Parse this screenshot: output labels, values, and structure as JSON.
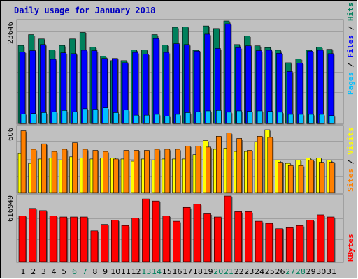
{
  "colors": {
    "background": "#c0c0c0",
    "title": "#0000c0",
    "hits": "#00805c",
    "files": "#0000ff",
    "pages": "#00c0ff",
    "visits": "#ffff00",
    "sites": "#ff8000",
    "kbytes": "#ff0000",
    "weekend": "#00805c",
    "weekday": "#000000"
  },
  "chart_data": [
    {
      "type": "bar",
      "title": "Daily usage for January 2018",
      "y_max_label": "23646",
      "ylim": [
        0,
        23646
      ],
      "categories": [
        "1",
        "2",
        "3",
        "4",
        "5",
        "6",
        "7",
        "8",
        "9",
        "10",
        "11",
        "12",
        "13",
        "14",
        "15",
        "16",
        "17",
        "18",
        "19",
        "20",
        "21",
        "22",
        "23",
        "24",
        "25",
        "26",
        "27",
        "28",
        "29",
        "30",
        "31"
      ],
      "weekend_days": [
        "6",
        "7",
        "13",
        "14",
        "20",
        "21",
        "27",
        "28"
      ],
      "legend": [
        {
          "label": "Pages",
          "color": "#00c0ff"
        },
        {
          "label": " / ",
          "color": "#000000"
        },
        {
          "label": "Files",
          "color": "#0000ff"
        },
        {
          "label": " / ",
          "color": "#000000"
        },
        {
          "label": "Hits",
          "color": "#00805c"
        }
      ],
      "series": [
        {
          "name": "Hits",
          "values": [
            18000,
            20500,
            19500,
            17000,
            18000,
            19500,
            21000,
            17600,
            15500,
            14500,
            14500,
            17000,
            17000,
            20500,
            18100,
            22200,
            22300,
            16900,
            22500,
            21900,
            23646,
            18200,
            20200,
            17900,
            17500,
            16900,
            14000,
            14900,
            16900,
            17600,
            17100
          ]
        },
        {
          "name": "Files",
          "values": [
            16500,
            16800,
            18200,
            14800,
            16300,
            16100,
            16900,
            16800,
            15000,
            15000,
            14000,
            16400,
            16000,
            19600,
            16400,
            18400,
            18200,
            16700,
            20600,
            17300,
            23000,
            17500,
            17900,
            16800,
            16900,
            16200,
            12000,
            13900,
            16700,
            16900,
            16100
          ]
        },
        {
          "name": "Pages",
          "values": [
            2200,
            2300,
            2500,
            2700,
            3000,
            2700,
            3400,
            3300,
            3600,
            2500,
            3100,
            1900,
            1900,
            2100,
            1700,
            2100,
            2500,
            2700,
            2900,
            3000,
            2600,
            2900,
            2800,
            2900,
            2800,
            2600,
            2100,
            2100,
            2100,
            2100,
            1800
          ]
        }
      ]
    },
    {
      "type": "bar",
      "y_max_label": "606",
      "ylim": [
        0,
        606
      ],
      "legend": [
        {
          "label": "Sites",
          "color": "#ff8000"
        },
        {
          "label": " / ",
          "color": "#000000"
        },
        {
          "label": "Visits",
          "color": "#ffff00"
        }
      ],
      "series": [
        {
          "name": "Visits",
          "values": [
            360,
            270,
            310,
            320,
            300,
            330,
            320,
            310,
            320,
            320,
            310,
            290,
            310,
            300,
            310,
            310,
            310,
            350,
            480,
            400,
            410,
            380,
            380,
            470,
            580,
            300,
            270,
            300,
            320,
            320,
            300
          ]
        },
        {
          "name": "Sites",
          "values": [
            570,
            400,
            450,
            380,
            400,
            460,
            400,
            390,
            380,
            310,
            390,
            390,
            390,
            400,
            400,
            400,
            430,
            430,
            420,
            520,
            550,
            500,
            390,
            520,
            510,
            280,
            250,
            250,
            300,
            280,
            280
          ]
        }
      ]
    },
    {
      "type": "bar",
      "y_max_label": "616949",
      "ylim": [
        0,
        616949
      ],
      "legend": [
        {
          "label": "KBytes",
          "color": "#ff0000"
        }
      ],
      "series": [
        {
          "name": "KBytes",
          "values": [
            430000,
            500000,
            480000,
            430000,
            420000,
            420000,
            420000,
            290000,
            350000,
            390000,
            340000,
            410000,
            590000,
            570000,
            430000,
            380000,
            510000,
            540000,
            450000,
            420000,
            616949,
            470000,
            470000,
            380000,
            360000,
            310000,
            320000,
            340000,
            390000,
            440000,
            420000
          ]
        }
      ]
    }
  ]
}
